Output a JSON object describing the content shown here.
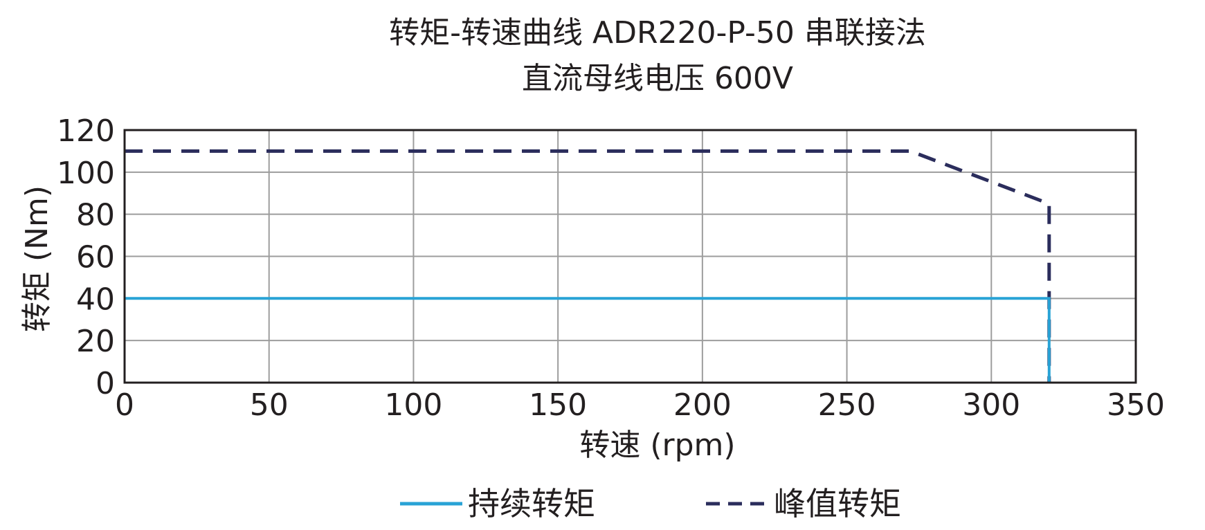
{
  "chart_data": {
    "type": "line",
    "title_line1": "转矩-转速曲线 ADR220-P-50 串联接法",
    "title_line2": "直流母线电压 600V",
    "xlabel": "转速 (rpm)",
    "ylabel": "转矩 (Nm)",
    "xlim": [
      0,
      350
    ],
    "ylim": [
      0,
      120
    ],
    "x_ticks": [
      0,
      50,
      100,
      150,
      200,
      250,
      300,
      350
    ],
    "y_ticks": [
      0,
      20,
      40,
      60,
      80,
      100,
      120
    ],
    "grid": true,
    "legend_position": "bottom",
    "series": [
      {
        "name": "持续转矩",
        "style": "solid",
        "color": "#29a3d6",
        "x": [
          0,
          320,
          320
        ],
        "y": [
          40,
          40,
          0
        ]
      },
      {
        "name": "峰值转矩",
        "style": "dashed",
        "color": "#2b2d5c",
        "x": [
          0,
          272,
          320,
          320
        ],
        "y": [
          110,
          110,
          85,
          0
        ]
      }
    ]
  }
}
